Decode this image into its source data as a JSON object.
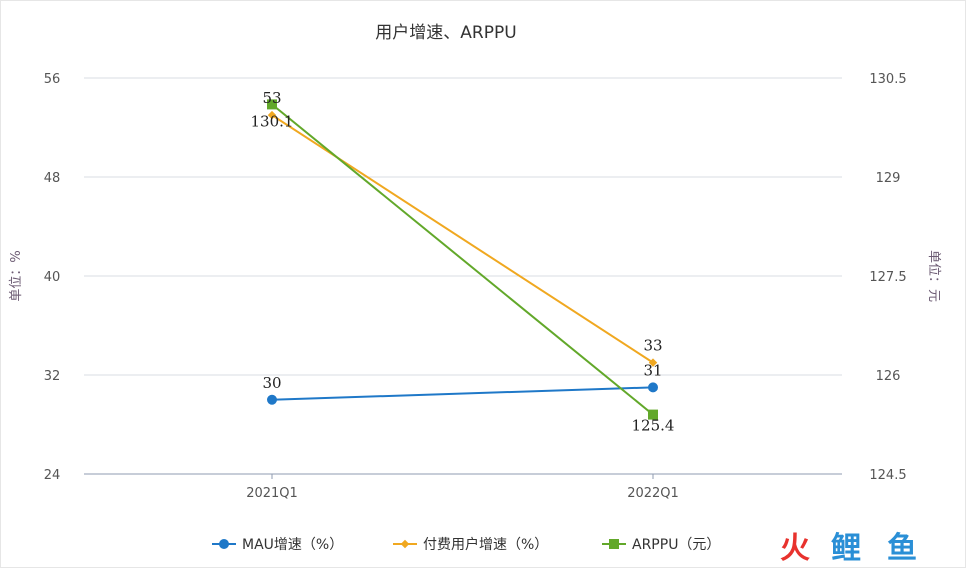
{
  "chart_data": {
    "type": "line",
    "title": "用户增速、ARPPU",
    "categories": [
      "2021Q1",
      "2022Q1"
    ],
    "y_left": {
      "label": "单位：%",
      "min": 24,
      "max": 56,
      "ticks": [
        "24",
        "32",
        "40",
        "48",
        "56"
      ]
    },
    "y_right": {
      "label": "单位：元",
      "min": 124.5,
      "max": 130.5,
      "ticks": [
        "124.5",
        "126",
        "127.5",
        "129",
        "130.5"
      ]
    },
    "series": [
      {
        "name": "MAU增速（%）",
        "axis": "left",
        "values": [
          30,
          31
        ],
        "labels": [
          "30",
          "31"
        ],
        "color": "#1f78c8",
        "marker": "circle"
      },
      {
        "name": "付费用户增速（%）",
        "axis": "left",
        "values": [
          53,
          33
        ],
        "labels": [
          "53",
          "33"
        ],
        "color": "#f0a820",
        "marker": "diamond"
      },
      {
        "name": "ARPPU（元）",
        "axis": "right",
        "values": [
          130.1,
          125.4
        ],
        "labels": [
          "130.1",
          "125.4"
        ],
        "color": "#62a82a",
        "marker": "square"
      }
    ],
    "grid": true,
    "legend_position": "bottom"
  },
  "watermark": {
    "chars": [
      "火",
      "鲤",
      "鱼"
    ],
    "colors": [
      "#e8322d",
      "#2a8fd6",
      "#2a8fd6"
    ]
  }
}
